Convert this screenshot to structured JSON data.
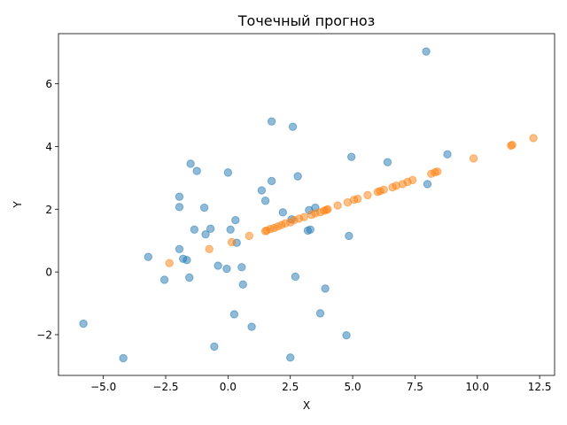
{
  "chart_data": {
    "type": "scatter",
    "title": "Точечный прогноз",
    "xlabel": "X",
    "ylabel": "Y",
    "xlim": [
      -6.8,
      13.1
    ],
    "ylim": [
      -3.3,
      7.6
    ],
    "xticks": [
      -5.0,
      -2.5,
      0.0,
      2.5,
      5.0,
      7.5,
      10.0,
      12.5
    ],
    "yticks": [
      -2,
      0,
      2,
      4,
      6
    ],
    "xtick_labels": [
      "−5.0",
      "−2.5",
      "0.0",
      "2.5",
      "5.0",
      "7.5",
      "10.0",
      "12.5"
    ],
    "ytick_labels": [
      "−2",
      "0",
      "2",
      "4",
      "6"
    ],
    "grid": false,
    "legend": null,
    "series": [
      {
        "color": "#1f77b4",
        "alpha": 0.5,
        "x": [
          -5.8,
          -4.2,
          -3.2,
          -2.55,
          -1.95,
          -1.95,
          -1.95,
          -1.8,
          -1.65,
          -1.55,
          -1.5,
          -1.35,
          -1.25,
          -0.95,
          -0.9,
          -0.7,
          -0.55,
          -0.4,
          -0.05,
          0.0,
          0.1,
          0.25,
          0.3,
          0.35,
          0.55,
          0.6,
          0.95,
          1.35,
          1.5,
          1.75,
          1.75,
          2.2,
          2.5,
          2.55,
          2.6,
          2.7,
          2.8,
          3.2,
          3.25,
          3.3,
          3.5,
          3.7,
          3.9,
          4.75,
          4.85,
          4.95,
          6.4,
          7.95,
          8.0,
          8.8
        ],
        "y": [
          -1.65,
          -2.75,
          0.48,
          -0.25,
          2.4,
          2.07,
          0.73,
          0.42,
          0.38,
          -0.18,
          3.45,
          1.35,
          3.22,
          2.05,
          1.2,
          1.38,
          -2.38,
          0.2,
          0.1,
          3.17,
          1.35,
          -1.35,
          1.65,
          0.93,
          0.15,
          -0.4,
          -1.75,
          2.6,
          2.27,
          4.8,
          2.9,
          1.9,
          -2.73,
          1.68,
          4.63,
          -0.15,
          3.05,
          1.32,
          1.97,
          1.35,
          2.05,
          -1.32,
          -0.53,
          -2.02,
          1.15,
          3.67,
          3.5,
          7.03,
          2.8,
          3.75
        ]
      },
      {
        "color": "#ff7f0e",
        "alpha": 0.5,
        "x": [
          -2.35,
          -0.75,
          0.15,
          0.85,
          1.5,
          1.55,
          1.7,
          1.85,
          2.0,
          2.15,
          2.3,
          2.5,
          2.65,
          2.85,
          3.05,
          3.35,
          3.5,
          3.7,
          3.85,
          3.95,
          4.0,
          4.4,
          4.8,
          5.05,
          5.2,
          5.6,
          6.0,
          6.1,
          6.25,
          6.6,
          6.75,
          7.0,
          7.2,
          7.4,
          8.15,
          8.3,
          8.4,
          9.85,
          11.35,
          11.4,
          12.25
        ],
        "y": [
          0.28,
          0.73,
          0.95,
          1.15,
          1.3,
          1.32,
          1.37,
          1.4,
          1.45,
          1.5,
          1.55,
          1.58,
          1.65,
          1.7,
          1.75,
          1.82,
          1.87,
          1.9,
          1.95,
          1.98,
          2.0,
          2.12,
          2.22,
          2.3,
          2.33,
          2.45,
          2.55,
          2.58,
          2.62,
          2.7,
          2.75,
          2.8,
          2.87,
          2.93,
          3.13,
          3.18,
          3.2,
          3.62,
          4.03,
          4.05,
          4.27
        ]
      }
    ]
  }
}
